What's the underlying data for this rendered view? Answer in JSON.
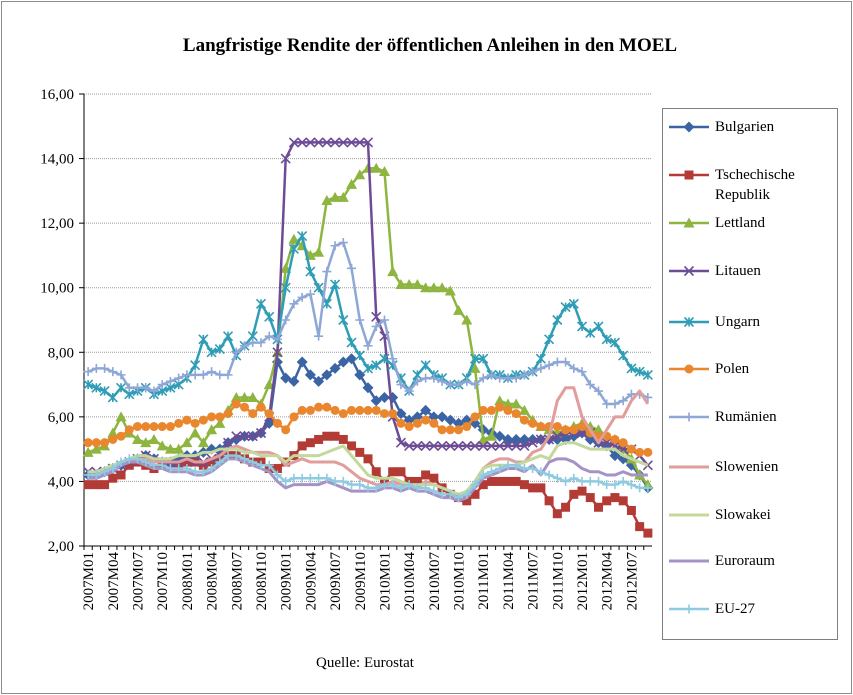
{
  "chart_data": {
    "type": "line",
    "title": "Langfristige Rendite der öffentlichen Anleihen in den MOEL",
    "source": "Quelle: Eurostat",
    "categories": [
      "2007M01",
      null,
      null,
      "2007M04",
      null,
      null,
      "2007M07",
      null,
      null,
      "2007M10",
      null,
      null,
      "2008M01",
      null,
      null,
      "2008M04",
      null,
      null,
      "2008M07",
      null,
      null,
      "2008M10",
      null,
      null,
      "2009M01",
      null,
      null,
      "2009M04",
      null,
      null,
      "2009M07",
      null,
      null,
      "2009M10",
      null,
      null,
      "2010M01",
      null,
      null,
      "2010M04",
      null,
      null,
      "2010M07",
      null,
      null,
      "2010M10",
      null,
      null,
      "2011M01",
      null,
      null,
      "2011M04",
      null,
      null,
      "2011M07",
      null,
      null,
      "2011M10",
      null,
      null,
      "2012M01",
      null,
      null,
      "2012M04",
      null,
      null,
      "2012M07",
      null,
      null
    ],
    "ylim": [
      2,
      16
    ],
    "yticks": [
      {
        "value": 2,
        "label": "2,00"
      },
      {
        "value": 4,
        "label": "4,00"
      },
      {
        "value": 6,
        "label": "6,00"
      },
      {
        "value": 8,
        "label": "8,00"
      },
      {
        "value": 10,
        "label": "10,00"
      },
      {
        "value": 12,
        "label": "12,00"
      },
      {
        "value": 14,
        "label": "14,00"
      },
      {
        "value": 16,
        "label": "16,00"
      }
    ],
    "grid": true,
    "legend": "right",
    "series": [
      {
        "name": "Bulgarien",
        "color": "#3b64a5",
        "marker": "diamond",
        "values": [
          4.2,
          4.2,
          4.3,
          4.4,
          4.5,
          4.6,
          4.7,
          4.8,
          4.7,
          4.6,
          4.6,
          4.7,
          4.8,
          4.8,
          4.9,
          5.0,
          5.0,
          5.2,
          5.3,
          5.4,
          5.4,
          5.5,
          5.8,
          7.7,
          7.2,
          7.1,
          7.7,
          7.3,
          7.1,
          7.3,
          7.5,
          7.7,
          7.8,
          7.3,
          6.9,
          6.5,
          6.6,
          6.6,
          6.1,
          5.9,
          6.0,
          6.2,
          6.0,
          6.0,
          5.9,
          5.8,
          5.9,
          5.8,
          5.6,
          5.5,
          5.4,
          5.3,
          5.3,
          5.3,
          5.3,
          5.3,
          5.3,
          5.3,
          5.3,
          5.4,
          5.5,
          5.3,
          5.2,
          5.1,
          4.8,
          4.7,
          4.5,
          4.2,
          3.8
        ]
      },
      {
        "name": "Tschechische Republik",
        "color": "#b33b35",
        "marker": "square",
        "values": [
          3.9,
          3.9,
          3.9,
          4.1,
          4.2,
          4.5,
          4.6,
          4.5,
          4.4,
          4.5,
          4.5,
          4.5,
          4.6,
          4.6,
          4.5,
          4.6,
          4.7,
          4.8,
          4.8,
          4.7,
          4.6,
          4.6,
          4.4,
          4.4,
          4.6,
          4.8,
          5.1,
          5.2,
          5.3,
          5.4,
          5.4,
          5.3,
          5.1,
          4.9,
          4.7,
          4.3,
          4.0,
          4.3,
          4.3,
          4.0,
          4.0,
          4.2,
          4.1,
          3.8,
          3.6,
          3.5,
          3.4,
          3.6,
          3.9,
          4.0,
          4.0,
          4.0,
          4.0,
          3.9,
          3.8,
          3.8,
          3.4,
          3.0,
          3.2,
          3.6,
          3.7,
          3.5,
          3.2,
          3.4,
          3.5,
          3.4,
          3.1,
          2.6,
          2.4
        ]
      },
      {
        "name": "Lettland",
        "color": "#8db53f",
        "marker": "triangle",
        "values": [
          4.9,
          5.0,
          5.1,
          5.5,
          6.0,
          5.5,
          5.3,
          5.2,
          5.3,
          5.1,
          5.0,
          5.0,
          5.2,
          5.5,
          5.2,
          5.6,
          5.8,
          6.2,
          6.6,
          6.6,
          6.6,
          6.4,
          7.0,
          8.0,
          10.6,
          11.5,
          11.3,
          11.0,
          11.1,
          12.7,
          12.8,
          12.8,
          13.2,
          13.5,
          13.7,
          13.7,
          13.6,
          10.5,
          10.1,
          10.1,
          10.1,
          10.0,
          10.0,
          10.0,
          9.9,
          9.3,
          9.0,
          7.5,
          5.3,
          5.4,
          6.5,
          6.4,
          6.4,
          6.2,
          5.9,
          5.7,
          5.6,
          5.5,
          5.6,
          5.7,
          5.8,
          5.7,
          5.6,
          5.4,
          5.3,
          5.0,
          4.7,
          4.2,
          3.9
        ]
      },
      {
        "name": "Litauen",
        "color": "#6d4c95",
        "marker": "x",
        "values": [
          4.3,
          4.3,
          4.3,
          4.4,
          4.5,
          4.6,
          4.7,
          4.8,
          4.7,
          4.6,
          4.5,
          4.6,
          4.7,
          4.6,
          4.6,
          4.7,
          4.8,
          5.2,
          5.4,
          5.4,
          5.4,
          5.5,
          6.0,
          8.0,
          14.0,
          14.5,
          14.5,
          14.5,
          14.5,
          14.5,
          14.5,
          14.5,
          14.5,
          14.5,
          14.5,
          9.1,
          8.5,
          6.0,
          5.2,
          5.1,
          5.1,
          5.1,
          5.1,
          5.1,
          5.1,
          5.1,
          5.1,
          5.1,
          5.1,
          5.1,
          5.1,
          5.1,
          5.1,
          5.1,
          5.2,
          5.3,
          5.3,
          5.4,
          5.5,
          5.5,
          5.5,
          5.5,
          5.2,
          5.2,
          5.1,
          5.0,
          5.0,
          4.8,
          4.5
        ]
      },
      {
        "name": "Ungarn",
        "color": "#2f9db5",
        "marker": "asterisk",
        "values": [
          7.0,
          6.9,
          6.8,
          6.6,
          6.9,
          6.7,
          6.8,
          6.9,
          6.7,
          6.8,
          6.9,
          7.0,
          7.2,
          7.6,
          8.4,
          8.0,
          8.1,
          8.5,
          7.9,
          8.2,
          8.5,
          9.5,
          9.1,
          8.4,
          10.0,
          11.2,
          11.6,
          10.5,
          10.0,
          9.5,
          10.1,
          9.0,
          8.3,
          7.9,
          7.5,
          7.6,
          7.8,
          7.6,
          7.2,
          6.8,
          7.3,
          7.6,
          7.3,
          7.2,
          7.0,
          7.0,
          7.2,
          7.8,
          7.8,
          7.3,
          7.3,
          7.2,
          7.3,
          7.3,
          7.4,
          7.8,
          8.4,
          9.0,
          9.4,
          9.5,
          8.8,
          8.6,
          8.8,
          8.4,
          8.3,
          7.9,
          7.5,
          7.4,
          7.3
        ]
      },
      {
        "name": "Polen",
        "color": "#ea862d",
        "marker": "circle",
        "values": [
          5.2,
          5.2,
          5.2,
          5.3,
          5.4,
          5.6,
          5.7,
          5.7,
          5.7,
          5.7,
          5.7,
          5.8,
          5.9,
          5.8,
          5.9,
          6.0,
          6.0,
          6.1,
          6.4,
          6.3,
          6.1,
          6.3,
          6.1,
          5.8,
          5.6,
          6.0,
          6.2,
          6.2,
          6.3,
          6.3,
          6.2,
          6.1,
          6.2,
          6.2,
          6.2,
          6.2,
          6.1,
          6.1,
          5.8,
          5.7,
          5.8,
          5.9,
          5.8,
          5.6,
          5.6,
          5.6,
          5.7,
          6.0,
          6.2,
          6.2,
          6.3,
          6.2,
          6.1,
          5.9,
          5.8,
          5.7,
          5.7,
          5.7,
          5.6,
          5.6,
          5.7,
          5.5,
          5.4,
          5.4,
          5.3,
          5.2,
          5.0,
          4.9,
          4.9
        ]
      },
      {
        "name": "Rumänien",
        "color": "#8ea7d6",
        "marker": "plus",
        "values": [
          7.4,
          7.5,
          7.5,
          7.4,
          7.3,
          6.9,
          6.9,
          6.9,
          6.8,
          7.0,
          7.1,
          7.2,
          7.3,
          7.3,
          7.3,
          7.4,
          7.3,
          7.3,
          8.0,
          8.2,
          8.3,
          8.3,
          8.5,
          8.4,
          9.0,
          9.5,
          9.7,
          9.8,
          8.5,
          10.5,
          11.3,
          11.4,
          10.6,
          9.0,
          8.2,
          8.8,
          9.0,
          7.8,
          7.0,
          6.8,
          7.1,
          7.2,
          7.2,
          7.1,
          7.0,
          7.0,
          7.1,
          7.0,
          7.2,
          7.3,
          7.2,
          7.2,
          7.2,
          7.3,
          7.4,
          7.5,
          7.6,
          7.7,
          7.7,
          7.5,
          7.4,
          7.0,
          6.8,
          6.4,
          6.4,
          6.5,
          6.7,
          6.7,
          6.6
        ]
      },
      {
        "name": "Slowenien",
        "color": "#e09d9b",
        "marker": "none",
        "values": [
          4.2,
          4.2,
          4.3,
          4.4,
          4.5,
          4.6,
          4.7,
          4.7,
          4.6,
          4.6,
          4.6,
          4.6,
          4.7,
          4.6,
          4.6,
          4.7,
          4.8,
          5.0,
          5.1,
          5.0,
          4.9,
          4.9,
          4.9,
          4.8,
          4.5,
          4.6,
          4.7,
          4.6,
          4.6,
          4.6,
          4.6,
          4.5,
          4.3,
          4.1,
          4.0,
          3.9,
          3.9,
          4.0,
          3.9,
          3.9,
          3.8,
          4.0,
          3.9,
          3.8,
          3.7,
          3.6,
          3.6,
          4.0,
          4.4,
          4.6,
          4.7,
          4.7,
          4.6,
          4.6,
          4.9,
          5.0,
          5.4,
          6.5,
          6.9,
          6.9,
          6.0,
          5.6,
          5.2,
          5.6,
          6.0,
          6.0,
          6.5,
          6.8,
          6.4
        ]
      },
      {
        "name": "Slowakei",
        "color": "#c3d89b",
        "marker": "none",
        "values": [
          4.3,
          4.3,
          4.4,
          4.5,
          4.6,
          4.7,
          4.8,
          4.8,
          4.7,
          4.7,
          4.7,
          4.8,
          4.8,
          4.8,
          4.9,
          4.9,
          5.0,
          5.0,
          5.0,
          4.9,
          4.9,
          4.8,
          4.8,
          4.8,
          4.6,
          4.8,
          4.8,
          4.8,
          4.8,
          4.9,
          5.0,
          5.1,
          4.8,
          4.5,
          4.2,
          4.1,
          4.1,
          4.1,
          4.0,
          3.9,
          3.9,
          3.9,
          3.9,
          3.8,
          3.7,
          3.6,
          3.7,
          4.0,
          4.4,
          4.5,
          4.5,
          4.5,
          4.5,
          4.6,
          4.7,
          4.8,
          4.7,
          5.1,
          5.2,
          5.2,
          5.1,
          5.0,
          5.0,
          5.0,
          5.0,
          4.8,
          4.7,
          4.6,
          4.5
        ]
      },
      {
        "name": "Euroraum",
        "color": "#a593c6",
        "marker": "none",
        "values": [
          4.1,
          4.1,
          4.2,
          4.3,
          4.5,
          4.6,
          4.6,
          4.5,
          4.4,
          4.4,
          4.3,
          4.3,
          4.3,
          4.2,
          4.2,
          4.3,
          4.5,
          4.7,
          4.7,
          4.6,
          4.5,
          4.4,
          4.3,
          4.0,
          3.8,
          3.9,
          3.9,
          3.9,
          3.9,
          4.0,
          3.9,
          3.8,
          3.7,
          3.7,
          3.7,
          3.7,
          3.8,
          3.8,
          3.7,
          3.8,
          3.7,
          3.7,
          3.6,
          3.5,
          3.5,
          3.4,
          3.5,
          3.8,
          4.1,
          4.2,
          4.3,
          4.4,
          4.4,
          4.3,
          4.5,
          4.2,
          4.6,
          4.7,
          4.7,
          4.6,
          4.4,
          4.3,
          4.3,
          4.2,
          4.2,
          4.3,
          4.2,
          4.2,
          4.2
        ]
      },
      {
        "name": "EU-27",
        "color": "#8ecbe1",
        "marker": "plus",
        "values": [
          4.2,
          4.2,
          4.3,
          4.4,
          4.6,
          4.7,
          4.7,
          4.6,
          4.5,
          4.5,
          4.4,
          4.4,
          4.4,
          4.3,
          4.3,
          4.4,
          4.6,
          4.8,
          4.8,
          4.7,
          4.6,
          4.5,
          4.5,
          4.2,
          4.0,
          4.1,
          4.1,
          4.1,
          4.1,
          4.1,
          4.0,
          4.0,
          3.9,
          3.9,
          3.8,
          3.8,
          3.9,
          3.9,
          3.8,
          3.9,
          3.8,
          3.8,
          3.7,
          3.6,
          3.6,
          3.5,
          3.6,
          3.9,
          4.2,
          4.3,
          4.4,
          4.5,
          4.5,
          4.4,
          4.4,
          4.3,
          4.2,
          4.1,
          4.0,
          4.1,
          4.0,
          4.0,
          4.0,
          3.9,
          3.9,
          4.0,
          3.9,
          3.8,
          3.8
        ]
      }
    ]
  }
}
